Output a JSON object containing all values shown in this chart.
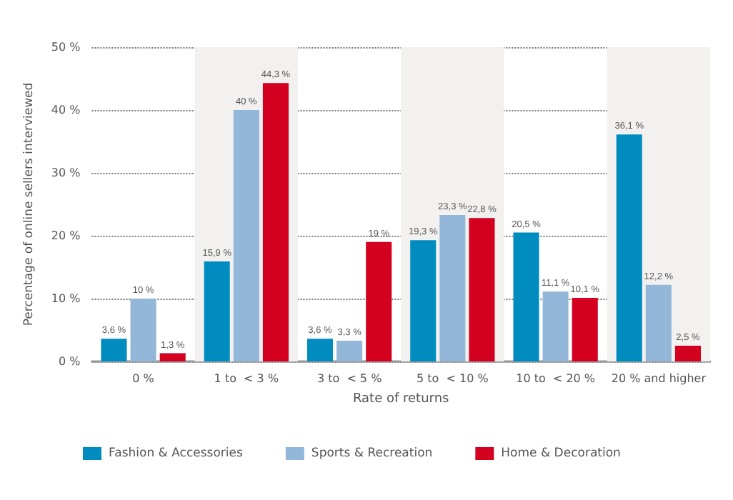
{
  "chart_data": {
    "type": "bar",
    "xlabel": "Rate of returns",
    "ylabel": "Percentage of online sellers interviewed",
    "categories": [
      "0 %",
      "1 to  < 3 %",
      "3 to  < 5 %",
      "5 to  < 10 %",
      "10 to  < 20 %",
      "20 % and higher"
    ],
    "series": [
      {
        "name": "Fashion & Accessories",
        "color": "#008cbf",
        "values": [
          3.6,
          15.9,
          3.6,
          19.3,
          20.5,
          36.1
        ],
        "value_labels": [
          "3,6 %",
          "15,9 %",
          "3,6 %",
          "19,3 %",
          "20,5 %",
          "36,1 %"
        ]
      },
      {
        "name": "Sports & Recreation",
        "color": "#92b7d8",
        "values": [
          10,
          40,
          3.3,
          23.3,
          11.1,
          12.2
        ],
        "value_labels": [
          "10 %",
          "40 %",
          "3,3 %",
          "23,3 %",
          "11,1 %",
          "12,2 %"
        ]
      },
      {
        "name": "Home & Decoration",
        "color": "#d4001f",
        "values": [
          1.3,
          44.3,
          19,
          22.8,
          10.1,
          2.5
        ],
        "value_labels": [
          "1,3 %",
          "44,3 %",
          "19 %",
          "22,8 %",
          "10,1 %",
          "2,5 %"
        ]
      }
    ],
    "ylim": [
      0,
      50
    ],
    "yticks": [
      {
        "value": 0,
        "label": "0 %"
      },
      {
        "value": 10,
        "label": "10 %"
      },
      {
        "value": 20,
        "label": "20 %"
      },
      {
        "value": 30,
        "label": "30 %"
      },
      {
        "value": 40,
        "label": "40 %"
      },
      {
        "value": 50,
        "label": "50 %"
      }
    ],
    "bands": [
      {
        "axis": "x",
        "from": "1 to  < 3 %",
        "to": "1 to  < 3 %",
        "color": "#f2f1f0"
      },
      {
        "axis": "x",
        "from": "5 to  < 10 %",
        "to": "5 to  < 10 %",
        "color": "#f2f1f0"
      },
      {
        "axis": "x",
        "from": "20 % and higher",
        "to": "20 % and higher",
        "color": "#f2f1f0"
      }
    ],
    "grid": "y",
    "legend": "bottom left"
  }
}
